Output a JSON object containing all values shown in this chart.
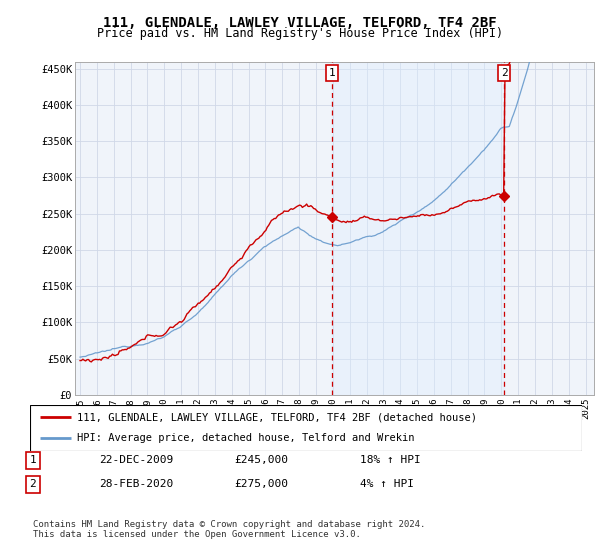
{
  "title": "111, GLENDALE, LAWLEY VILLAGE, TELFORD, TF4 2BF",
  "subtitle": "Price paid vs. HM Land Registry's House Price Index (HPI)",
  "ylabel_ticks": [
    "£0",
    "£50K",
    "£100K",
    "£150K",
    "£200K",
    "£250K",
    "£300K",
    "£350K",
    "£400K",
    "£450K"
  ],
  "ytick_vals": [
    0,
    50000,
    100000,
    150000,
    200000,
    250000,
    300000,
    350000,
    400000,
    450000
  ],
  "ylim": [
    0,
    460000
  ],
  "xlim_start": 1994.7,
  "xlim_end": 2025.5,
  "sale1_date": 2009.97,
  "sale1_label": "1",
  "sale1_price": 245000,
  "sale1_text": "22-DEC-2009",
  "sale1_hpi": "18% ↑ HPI",
  "sale2_date": 2020.17,
  "sale2_label": "2",
  "sale2_price": 275000,
  "sale2_text": "28-FEB-2020",
  "sale2_hpi": "4% ↑ HPI",
  "legend_line1": "111, GLENDALE, LAWLEY VILLAGE, TELFORD, TF4 2BF (detached house)",
  "legend_line2": "HPI: Average price, detached house, Telford and Wrekin",
  "footer": "Contains HM Land Registry data © Crown copyright and database right 2024.\nThis data is licensed under the Open Government Licence v3.0.",
  "red_color": "#cc0000",
  "blue_color": "#6699cc",
  "shade_color": "#ddeeff",
  "background_color": "#f0f4fa",
  "grid_color": "#d0d8e8"
}
